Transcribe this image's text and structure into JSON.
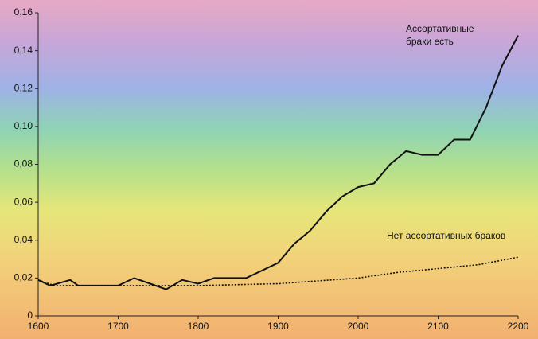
{
  "chart_data": {
    "type": "line",
    "xlim": [
      1600,
      2200
    ],
    "xticks": [
      1600,
      1700,
      1800,
      1900,
      2000,
      2100,
      2200
    ],
    "ylim": [
      0,
      0.16
    ],
    "yticks": [
      0,
      {
        "value": 0.02,
        "label": "0,02"
      },
      {
        "value": 0.04,
        "label": "0,04"
      },
      {
        "value": 0.06,
        "label": "0,06"
      },
      {
        "value": 0.08,
        "label": "0,08"
      },
      {
        "value": 0.1,
        "label": "0,10"
      },
      {
        "value": 0.12,
        "label": "0,12"
      },
      {
        "value": 0.14,
        "label": "0,14"
      },
      {
        "value": 0.16,
        "label": "0,16"
      }
    ],
    "series": [
      {
        "name": "Ассортативные браки есть",
        "color": "#111111",
        "style": "solid",
        "x": [
          1600,
          1615,
          1640,
          1650,
          1700,
          1720,
          1740,
          1760,
          1780,
          1800,
          1820,
          1860,
          1880,
          1900,
          1920,
          1940,
          1960,
          1980,
          2000,
          2020,
          2040,
          2060,
          2080,
          2100,
          2120,
          2140,
          2160,
          2180,
          2200
        ],
        "values": [
          0.019,
          0.016,
          0.019,
          0.016,
          0.016,
          0.02,
          0.017,
          0.014,
          0.019,
          0.017,
          0.02,
          0.02,
          0.024,
          0.028,
          0.038,
          0.045,
          0.055,
          0.063,
          0.068,
          0.07,
          0.08,
          0.087,
          0.085,
          0.085,
          0.093,
          0.093,
          0.11,
          0.132,
          0.148
        ]
      },
      {
        "name": "Нет ассортативных браков",
        "color": "#111111",
        "style": "dotted",
        "x": [
          1600,
          1620,
          1700,
          1800,
          1900,
          2000,
          2050,
          2100,
          2150,
          2200
        ],
        "values": [
          0.019,
          0.016,
          0.016,
          0.016,
          0.017,
          0.02,
          0.023,
          0.025,
          0.027,
          0.031
        ]
      }
    ]
  }
}
